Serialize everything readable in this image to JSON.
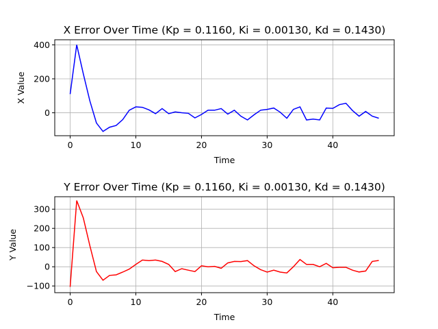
{
  "chart_data": [
    {
      "type": "line",
      "title": "X Error Over Time (Kp = 0.1160, Ki = 0.00130, Kd = 0.1430)",
      "xlabel": "Time",
      "ylabel": "X Value",
      "xlim": [
        -2.35,
        49.35
      ],
      "ylim": [
        -135,
        430
      ],
      "xticks": [
        0,
        10,
        20,
        30,
        40
      ],
      "yticks": [
        0,
        200,
        400
      ],
      "grid": true,
      "series": [
        {
          "color": "#0000ff",
          "x": [
            0,
            1,
            2,
            3,
            4,
            5,
            6,
            7,
            8,
            9,
            10,
            11,
            12,
            13,
            14,
            15,
            16,
            17,
            18,
            19,
            20,
            21,
            22,
            23,
            24,
            25,
            26,
            27,
            28,
            29,
            30,
            31,
            32,
            33,
            34,
            35,
            36,
            37,
            38,
            39,
            40,
            41,
            42,
            43,
            44,
            45,
            46,
            47
          ],
          "y": [
            110,
            400,
            230,
            70,
            -60,
            -110,
            -85,
            -75,
            -40,
            15,
            35,
            32,
            17,
            -5,
            25,
            -5,
            5,
            0,
            -3,
            -30,
            -10,
            15,
            15,
            25,
            -8,
            15,
            -20,
            -42,
            -12,
            15,
            20,
            28,
            3,
            -32,
            20,
            35,
            -42,
            -37,
            -42,
            28,
            26,
            48,
            56,
            13,
            -20,
            8,
            -20,
            -32
          ]
        }
      ]
    },
    {
      "type": "line",
      "title": "Y Error Over Time (Kp = 0.1160, Ki = 0.00130, Kd = 0.1430)",
      "xlabel": "Time",
      "ylabel": "Y Value",
      "xlim": [
        -2.35,
        49.35
      ],
      "ylim": [
        -135,
        365
      ],
      "xticks": [
        0,
        10,
        20,
        30,
        40
      ],
      "yticks": [
        -100,
        0,
        100,
        200,
        300
      ],
      "grid": true,
      "series": [
        {
          "color": "#ff0000",
          "x": [
            0,
            1,
            2,
            3,
            4,
            5,
            6,
            7,
            8,
            9,
            10,
            11,
            12,
            13,
            14,
            15,
            16,
            17,
            18,
            19,
            20,
            21,
            22,
            23,
            24,
            25,
            26,
            27,
            28,
            29,
            30,
            31,
            32,
            33,
            34,
            35,
            36,
            37,
            38,
            39,
            40,
            41,
            42,
            43,
            44,
            45,
            46,
            47
          ],
          "y": [
            -105,
            345,
            255,
            110,
            -25,
            -70,
            -45,
            -42,
            -28,
            -12,
            12,
            35,
            32,
            35,
            28,
            12,
            -25,
            -10,
            -18,
            -25,
            5,
            0,
            2,
            -8,
            20,
            28,
            27,
            32,
            5,
            -15,
            -28,
            -18,
            -28,
            -32,
            0,
            38,
            12,
            12,
            0,
            18,
            -5,
            -3,
            -3,
            -18,
            -27,
            -22,
            28,
            33
          ]
        }
      ]
    }
  ]
}
